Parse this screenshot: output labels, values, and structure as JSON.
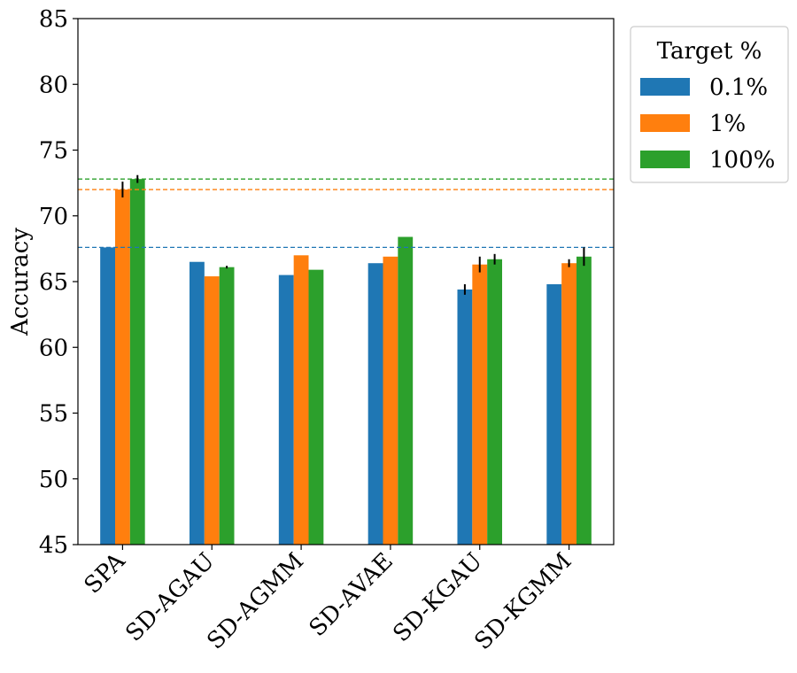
{
  "chart_data": {
    "type": "bar",
    "ylabel": "Accuracy",
    "ylim": [
      45,
      85
    ],
    "yticks": [
      "45",
      "50",
      "55",
      "60",
      "65",
      "70",
      "75",
      "80",
      "85"
    ],
    "categories": [
      "SPA",
      "SD-AGAU",
      "SD-AGMM",
      "SD-AVAE",
      "SD-KGAU",
      "SD-KGMM"
    ],
    "legend": {
      "title": "Target %",
      "placement": "outside-top-right"
    },
    "series": [
      {
        "name": "0.1%",
        "color": "#1f77b4",
        "values": [
          67.6,
          66.5,
          65.5,
          66.4,
          64.4,
          64.8
        ],
        "errors": [
          0,
          0,
          0,
          0,
          0.4,
          0
        ]
      },
      {
        "name": "1%",
        "color": "#ff7f0e",
        "values": [
          72.0,
          65.4,
          67.0,
          66.9,
          66.3,
          66.4
        ],
        "errors": [
          0.6,
          0,
          0,
          0,
          0.6,
          0.3
        ]
      },
      {
        "name": "100%",
        "color": "#2ca02c",
        "values": [
          72.8,
          66.1,
          65.9,
          68.4,
          66.7,
          66.9
        ],
        "errors": [
          0.3,
          0.1,
          0,
          0,
          0.4,
          0.7
        ]
      }
    ],
    "reference_lines": [
      {
        "series": "0.1%",
        "value": 67.6,
        "style": "dashed"
      },
      {
        "series": "1%",
        "value": 72.0,
        "style": "dashed"
      },
      {
        "series": "100%",
        "value": 72.8,
        "style": "dashed"
      }
    ],
    "grid": false
  }
}
